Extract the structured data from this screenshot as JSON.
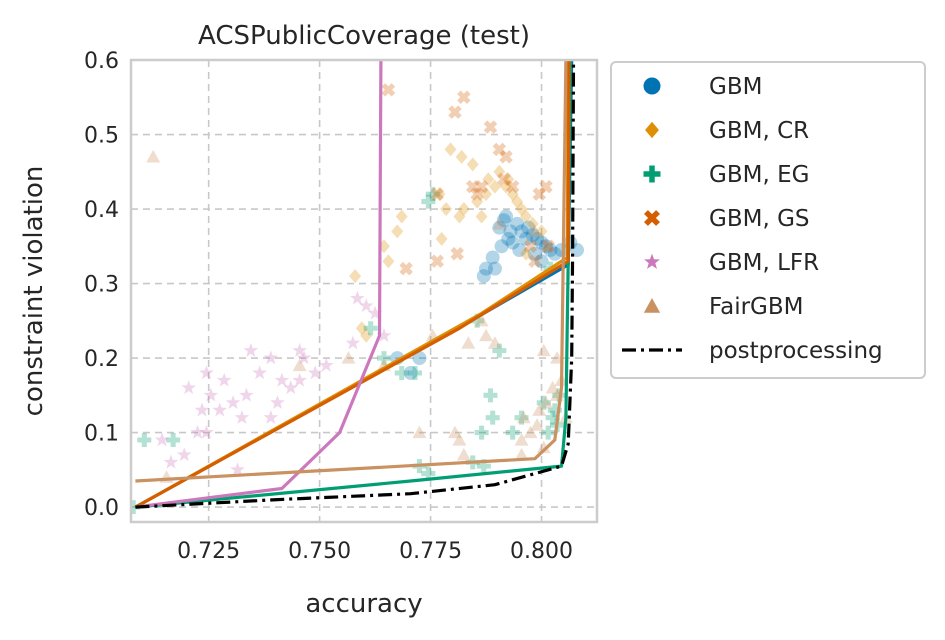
{
  "chart_data": {
    "type": "scatter",
    "title": "ACSPublicCoverage (test)",
    "xlabel": "accuracy",
    "ylabel": "constraint violation",
    "xlim": [
      0.7075,
      0.8125
    ],
    "ylim": [
      -0.02,
      0.6
    ],
    "xticks": [
      "0.725",
      "0.750",
      "0.775",
      "0.800"
    ],
    "yticks": [
      "0.0",
      "0.1",
      "0.2",
      "0.3",
      "0.4",
      "0.5",
      "0.6"
    ],
    "grid": true,
    "legend_position": "outside-right",
    "colors": {
      "GBM": "#0173b2",
      "GBM, CR": "#de8f05",
      "GBM, EG": "#029e73",
      "GBM, GS": "#d55e00",
      "GBM, LFR": "#cc78bc",
      "FairGBM": "#ca9161",
      "postprocessing": "#000000"
    },
    "series": [
      {
        "name": "GBM",
        "marker": "circle",
        "color": "#0173b2",
        "points": [
          [
            0.7905,
            0.375
          ],
          [
            0.7915,
            0.385
          ],
          [
            0.792,
            0.39
          ],
          [
            0.793,
            0.37
          ],
          [
            0.7925,
            0.36
          ],
          [
            0.7935,
            0.355
          ],
          [
            0.791,
            0.35
          ],
          [
            0.789,
            0.335
          ],
          [
            0.7895,
            0.32
          ],
          [
            0.7875,
            0.32
          ],
          [
            0.787,
            0.31
          ],
          [
            0.7945,
            0.38
          ],
          [
            0.7955,
            0.37
          ],
          [
            0.7965,
            0.36
          ],
          [
            0.797,
            0.375
          ],
          [
            0.798,
            0.365
          ],
          [
            0.799,
            0.36
          ],
          [
            0.8,
            0.355
          ],
          [
            0.801,
            0.35
          ],
          [
            0.802,
            0.345
          ],
          [
            0.803,
            0.34
          ],
          [
            0.8045,
            0.345
          ],
          [
            0.7985,
            0.34
          ],
          [
            0.8,
            0.33
          ],
          [
            0.808,
            0.345
          ],
          [
            0.8065,
            0.355
          ],
          [
            0.795,
            0.345
          ],
          [
            0.7675,
            0.2
          ],
          [
            0.7705,
            0.18
          ],
          [
            0.7725,
            0.2
          ]
        ],
        "pareto": [
          [
            0.7085,
            0.0
          ],
          [
            0.7855,
            0.255
          ],
          [
            0.8045,
            0.32
          ],
          [
            0.806,
            0.325
          ],
          [
            0.8068,
            0.6
          ]
        ]
      },
      {
        "name": "GBM, CR",
        "marker": "diamond",
        "color": "#de8f05",
        "points": [
          [
            0.7795,
            0.48
          ],
          [
            0.782,
            0.47
          ],
          [
            0.7845,
            0.46
          ],
          [
            0.788,
            0.44
          ],
          [
            0.7895,
            0.43
          ],
          [
            0.7875,
            0.42
          ],
          [
            0.7855,
            0.41
          ],
          [
            0.792,
            0.43
          ],
          [
            0.7935,
            0.42
          ],
          [
            0.7945,
            0.41
          ],
          [
            0.7955,
            0.4
          ],
          [
            0.7965,
            0.39
          ],
          [
            0.798,
            0.38
          ],
          [
            0.8,
            0.37
          ],
          [
            0.7905,
            0.45
          ],
          [
            0.7925,
            0.44
          ],
          [
            0.7815,
            0.39
          ],
          [
            0.7775,
            0.36
          ],
          [
            0.7685,
            0.39
          ],
          [
            0.7675,
            0.37
          ],
          [
            0.7645,
            0.35
          ],
          [
            0.7655,
            0.33
          ],
          [
            0.758,
            0.31
          ],
          [
            0.7595,
            0.24
          ],
          [
            0.7605,
            0.23
          ],
          [
            0.777,
            0.42
          ],
          [
            0.7785,
            0.4
          ],
          [
            0.7825,
            0.4
          ],
          [
            0.7865,
            0.39
          ],
          [
            0.7965,
            0.34
          ]
        ],
        "pareto": [
          [
            0.7085,
            0.0
          ],
          [
            0.7865,
            0.26
          ],
          [
            0.8045,
            0.33
          ],
          [
            0.8058,
            0.335
          ],
          [
            0.806,
            0.6
          ]
        ]
      },
      {
        "name": "GBM, EG",
        "marker": "plus",
        "color": "#029e73",
        "points": [
          [
            0.7755,
            0.42
          ],
          [
            0.7745,
            0.41
          ],
          [
            0.7615,
            0.24
          ],
          [
            0.7685,
            0.18
          ],
          [
            0.7715,
            0.18
          ],
          [
            0.7645,
            0.2
          ],
          [
            0.7855,
            0.25
          ],
          [
            0.7905,
            0.21
          ],
          [
            0.7885,
            0.15
          ],
          [
            0.7865,
            0.1
          ],
          [
            0.789,
            0.12
          ],
          [
            0.787,
            0.055
          ],
          [
            0.7845,
            0.06
          ],
          [
            0.7725,
            0.055
          ],
          [
            0.7745,
            0.045
          ],
          [
            0.802,
            0.32
          ],
          [
            0.8005,
            0.14
          ],
          [
            0.8025,
            0.12
          ],
          [
            0.8035,
            0.11
          ],
          [
            0.8015,
            0.1
          ],
          [
            0.803,
            0.13
          ],
          [
            0.804,
            0.15
          ],
          [
            0.7955,
            0.12
          ],
          [
            0.7935,
            0.1
          ],
          [
            0.7105,
            0.09
          ],
          [
            0.717,
            0.09
          ],
          [
            0.708,
            0.0
          ]
        ],
        "pareto": [
          [
            0.7085,
            0.0
          ],
          [
            0.7705,
            0.035
          ],
          [
            0.8045,
            0.055
          ],
          [
            0.8055,
            0.12
          ],
          [
            0.806,
            0.33
          ],
          [
            0.8065,
            0.6
          ]
        ]
      },
      {
        "name": "GBM, GS",
        "marker": "x",
        "color": "#d55e00",
        "points": [
          [
            0.7655,
            0.56
          ],
          [
            0.7825,
            0.55
          ],
          [
            0.7805,
            0.53
          ],
          [
            0.7885,
            0.51
          ],
          [
            0.7905,
            0.48
          ],
          [
            0.792,
            0.47
          ],
          [
            0.7865,
            0.43
          ],
          [
            0.7845,
            0.43
          ],
          [
            0.7855,
            0.42
          ],
          [
            0.7765,
            0.42
          ],
          [
            0.801,
            0.43
          ],
          [
            0.7995,
            0.42
          ],
          [
            0.7915,
            0.44
          ],
          [
            0.7935,
            0.43
          ],
          [
            0.7695,
            0.32
          ],
          [
            0.7765,
            0.33
          ],
          [
            0.781,
            0.34
          ],
          [
            0.8015,
            0.35
          ],
          [
            0.7975,
            0.35
          ],
          [
            0.7985,
            0.33
          ]
        ],
        "pareto": [
          [
            0.7085,
            0.0
          ],
          [
            0.7815,
            0.24
          ],
          [
            0.806,
            0.33
          ],
          [
            0.8062,
            0.6
          ]
        ]
      },
      {
        "name": "GBM, LFR",
        "marker": "star",
        "color": "#cc78bc",
        "points": [
          [
            0.7345,
            0.21
          ],
          [
            0.739,
            0.2
          ],
          [
            0.7455,
            0.21
          ],
          [
            0.7465,
            0.2
          ],
          [
            0.749,
            0.18
          ],
          [
            0.7515,
            0.19
          ],
          [
            0.7365,
            0.18
          ],
          [
            0.7285,
            0.17
          ],
          [
            0.7335,
            0.15
          ],
          [
            0.7305,
            0.14
          ],
          [
            0.7275,
            0.13
          ],
          [
            0.7205,
            0.16
          ],
          [
            0.7245,
            0.18
          ],
          [
            0.7255,
            0.15
          ],
          [
            0.7235,
            0.13
          ],
          [
            0.7225,
            0.1
          ],
          [
            0.7245,
            0.1
          ],
          [
            0.7325,
            0.12
          ],
          [
            0.739,
            0.12
          ],
          [
            0.7415,
            0.17
          ],
          [
            0.7435,
            0.16
          ],
          [
            0.7455,
            0.17
          ],
          [
            0.7585,
            0.28
          ],
          [
            0.7605,
            0.27
          ],
          [
            0.7625,
            0.26
          ],
          [
            0.7645,
            0.23
          ],
          [
            0.7575,
            0.22
          ],
          [
            0.7315,
            0.05
          ],
          [
            0.7145,
            0.09
          ],
          [
            0.7195,
            0.07
          ],
          [
            0.7165,
            0.06
          ],
          [
            0.7405,
            0.14
          ]
        ],
        "pareto": [
          [
            0.7085,
            0.0
          ],
          [
            0.7415,
            0.025
          ],
          [
            0.7545,
            0.1
          ],
          [
            0.7635,
            0.23
          ],
          [
            0.7638,
            0.6
          ]
        ]
      },
      {
        "name": "FairGBM",
        "marker": "triangle",
        "color": "#ca9161",
        "points": [
          [
            0.7125,
            0.47
          ],
          [
            0.7905,
            0.38
          ],
          [
            0.7985,
            0.37
          ],
          [
            0.8015,
            0.35
          ],
          [
            0.7865,
            0.25
          ],
          [
            0.7755,
            0.23
          ],
          [
            0.7875,
            0.23
          ],
          [
            0.7895,
            0.22
          ],
          [
            0.7835,
            0.22
          ],
          [
            0.8005,
            0.21
          ],
          [
            0.8035,
            0.2
          ],
          [
            0.8045,
            0.17
          ],
          [
            0.8025,
            0.16
          ],
          [
            0.8035,
            0.15
          ],
          [
            0.801,
            0.14
          ],
          [
            0.7955,
            0.09
          ],
          [
            0.7975,
            0.1
          ],
          [
            0.799,
            0.11
          ],
          [
            0.796,
            0.12
          ],
          [
            0.7995,
            0.13
          ],
          [
            0.8005,
            0.08
          ],
          [
            0.7955,
            0.07
          ],
          [
            0.7825,
            0.07
          ],
          [
            0.7815,
            0.09
          ],
          [
            0.7805,
            0.1
          ],
          [
            0.7645,
            0.19
          ],
          [
            0.7565,
            0.2
          ],
          [
            0.7455,
            0.19
          ],
          [
            0.7725,
            0.1
          ],
          [
            0.7155,
            0.04
          ],
          [
            0.8055,
            0.12
          ]
        ],
        "pareto": [
          [
            0.7085,
            0.035
          ],
          [
            0.7985,
            0.065
          ],
          [
            0.803,
            0.09
          ],
          [
            0.8045,
            0.16
          ],
          [
            0.8055,
            0.6
          ]
        ]
      },
      {
        "name": "postprocessing",
        "marker": "dashdot-line",
        "color": "#000000",
        "pareto": [
          [
            0.7085,
            0.0
          ],
          [
            0.7405,
            0.01
          ],
          [
            0.7705,
            0.018
          ],
          [
            0.7895,
            0.03
          ],
          [
            0.7985,
            0.045
          ],
          [
            0.8045,
            0.055
          ],
          [
            0.806,
            0.085
          ],
          [
            0.8068,
            0.2
          ],
          [
            0.807,
            0.34
          ],
          [
            0.8072,
            0.6
          ]
        ]
      }
    ]
  }
}
